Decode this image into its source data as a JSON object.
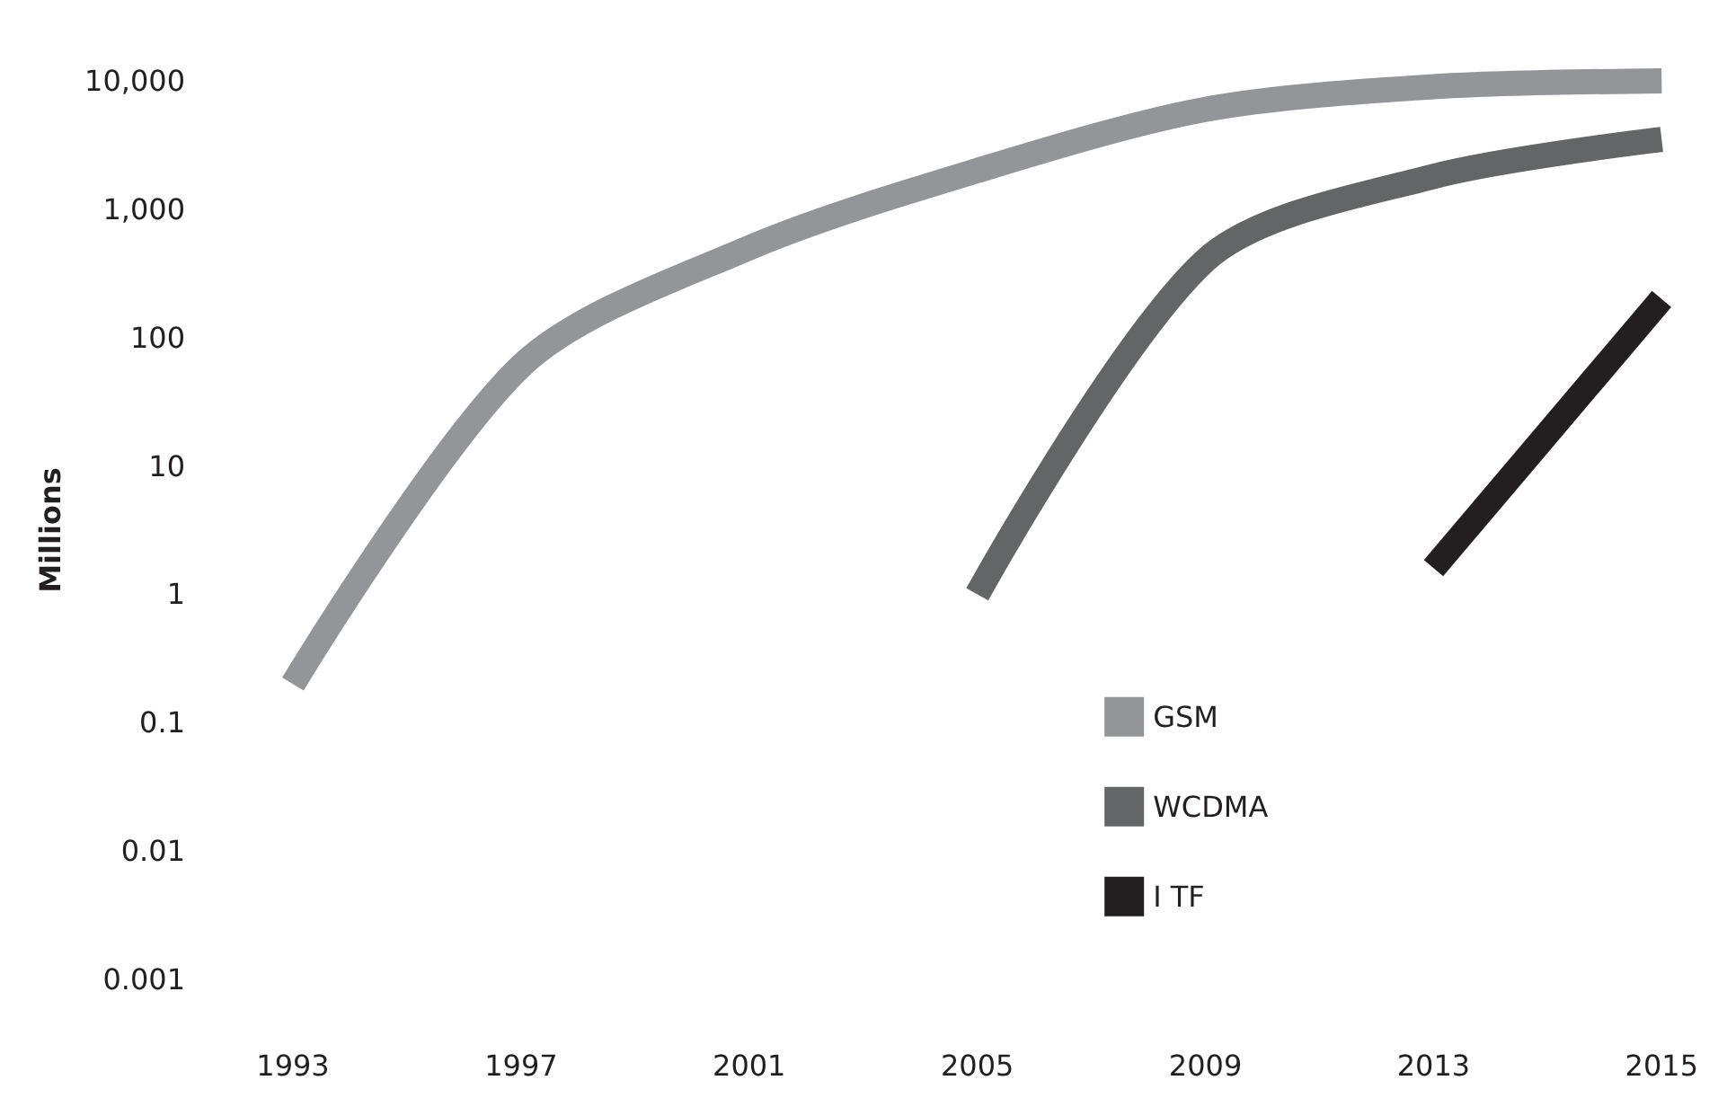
{
  "chart_data": {
    "type": "line",
    "ylabel": "Millions",
    "categories": [
      "1993",
      "1997",
      "2001",
      "2005",
      "2009",
      "2013",
      "2015"
    ],
    "series": [
      {
        "name": "GSM",
        "color": "#939598",
        "values": [
          0.2,
          60,
          500,
          2000,
          6000,
          9000,
          10000
        ]
      },
      {
        "name": "WCDMA",
        "color": "#646567",
        "values": [
          null,
          null,
          null,
          1,
          400,
          1800,
          3500
        ]
      },
      {
        "name": "I TF",
        "color": "#231f20",
        "values": [
          null,
          null,
          null,
          null,
          null,
          1.6,
          200
        ]
      }
    ],
    "log": "y",
    "ylim": [
      0.001,
      10000
    ],
    "yticks": [
      0.001,
      0.01,
      0.1,
      1,
      10,
      100,
      {
        "value": 1000,
        "label": "1,000"
      },
      {
        "value": 10000,
        "label": "10,000"
      }
    ],
    "grid": false,
    "legend": "bottom right",
    "marker": "none",
    "line_style": "solid"
  }
}
